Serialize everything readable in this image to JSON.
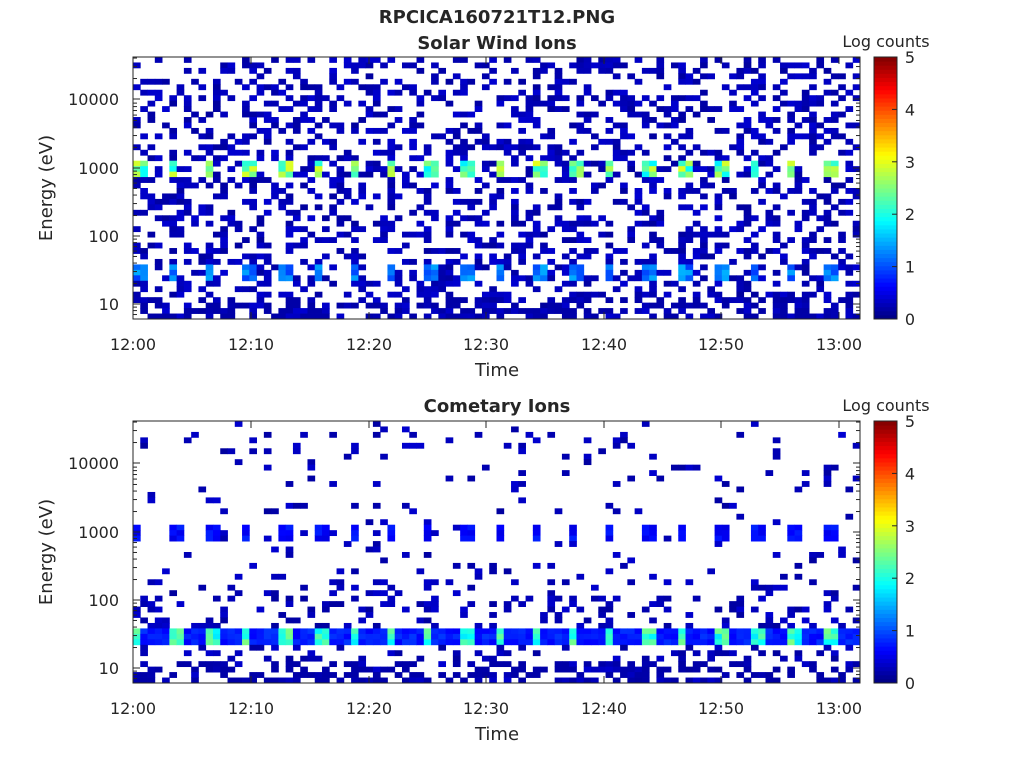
{
  "figure": {
    "title": "RPCICA160721T12.PNG"
  },
  "chart_data": [
    {
      "type": "heatmap",
      "title": "Solar Wind Ions",
      "xlabel": "Time",
      "ylabel": "Energy (eV)",
      "x_ticks": [
        "12:00",
        "12:10",
        "12:20",
        "12:30",
        "12:40",
        "12:50",
        "13:00"
      ],
      "y_scale": "log",
      "ylim": [
        6,
        40000
      ],
      "y_ticks": [
        "10",
        "100",
        "1000",
        "10000"
      ],
      "colorbar": {
        "label": "Log counts",
        "ticks": [
          "0",
          "1",
          "2",
          "3",
          "4",
          "5"
        ],
        "range": [
          0,
          5
        ],
        "colormap": "jet"
      },
      "features": [
        {
          "energy_eV": 900,
          "log_counts_peak": 3,
          "pattern": "periodic bursts ~every 3 min"
        },
        {
          "energy_eV": 28,
          "log_counts_peak": 1.5,
          "pattern": "periodic bursts ~every 3 min"
        },
        {
          "energy_range_eV": [
            6,
            40000
          ],
          "log_counts": 0.3,
          "pattern": "sparse background noise"
        }
      ]
    },
    {
      "type": "heatmap",
      "title": "Cometary Ions",
      "xlabel": "Time",
      "ylabel": "Energy (eV)",
      "x_ticks": [
        "12:00",
        "12:10",
        "12:20",
        "12:30",
        "12:40",
        "12:50",
        "13:00"
      ],
      "y_scale": "log",
      "ylim": [
        6,
        40000
      ],
      "y_ticks": [
        "10",
        "100",
        "1000",
        "10000"
      ],
      "colorbar": {
        "label": "Log counts",
        "ticks": [
          "0",
          "1",
          "2",
          "3",
          "4",
          "5"
        ],
        "range": [
          0,
          5
        ],
        "colormap": "jet"
      },
      "features": [
        {
          "energy_eV": 900,
          "log_counts_peak": 0.8,
          "pattern": "periodic bursts ~every 3 min"
        },
        {
          "energy_eV": 28,
          "log_counts_peak": 2.5,
          "pattern": "continuous band, periodic peaks"
        },
        {
          "energy_range_eV": [
            15,
            200
          ],
          "log_counts": 0.3,
          "pattern": "sparse noise"
        },
        {
          "energy_range_eV": [
            200,
            40000
          ],
          "log_counts": 0.2,
          "pattern": "very sparse noise"
        }
      ]
    }
  ]
}
